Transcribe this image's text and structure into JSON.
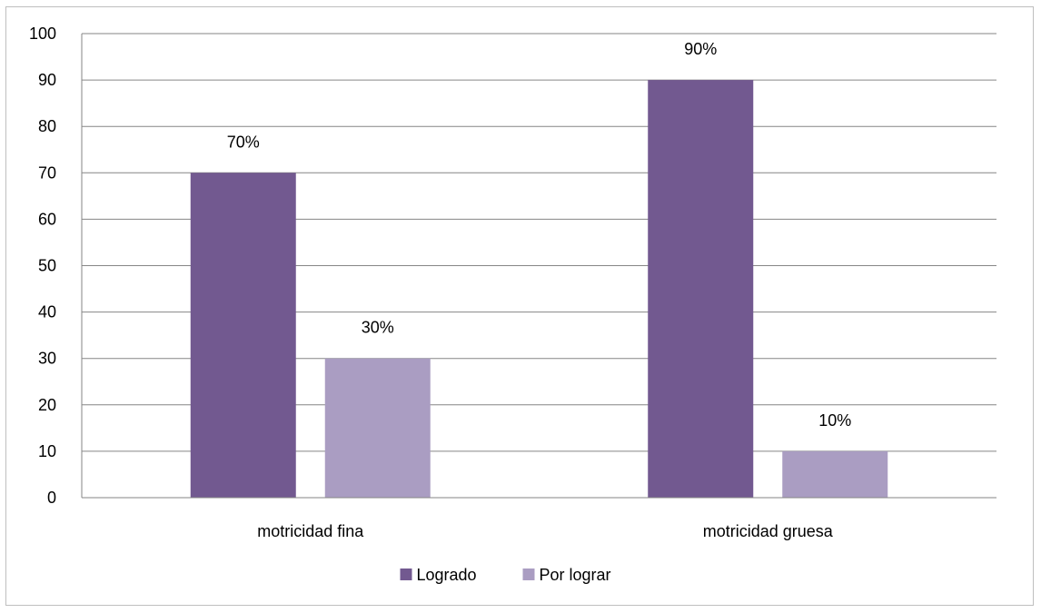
{
  "chart_data": {
    "type": "bar",
    "title": "",
    "xlabel": "",
    "ylabel": "",
    "categories": [
      "motricidad fina",
      "motricidad gruesa"
    ],
    "series": [
      {
        "name": "Logrado",
        "color": "#725990",
        "values": [
          70,
          90
        ],
        "data_labels": [
          "70%",
          "90%"
        ]
      },
      {
        "name": "Por lograr",
        "color": "#aa9dc2",
        "values": [
          30,
          10
        ],
        "data_labels": [
          "30%",
          "10%"
        ]
      }
    ],
    "ylim": [
      0,
      100
    ],
    "yticks": [
      0,
      10,
      20,
      30,
      40,
      50,
      60,
      70,
      80,
      90,
      100
    ],
    "ytick_labels": [
      "0",
      "10",
      "20",
      "30",
      "40",
      "50",
      "60",
      "70",
      "80",
      "90",
      "100"
    ],
    "grid": true,
    "gridline_color": "#868686",
    "legend_position": "bottom"
  }
}
